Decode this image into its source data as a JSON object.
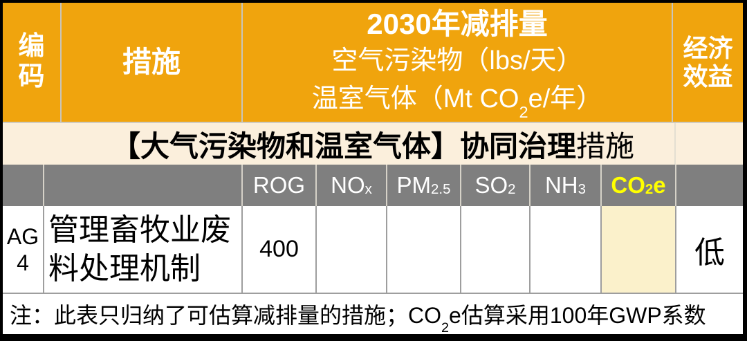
{
  "colors": {
    "header_orange": "#F0A40D",
    "section_cream": "#FBEFDC",
    "co2e_cell_cream": "#FBF1CB",
    "subheader_gray": "#7F7F7F",
    "co2e_highlight_yellow": "#FFFF00",
    "outer_border_black": "#000000"
  },
  "top_header": {
    "code_line1": "编",
    "code_line2": "码",
    "measure": "措施",
    "reduction": {
      "title": "2030年减排量",
      "subline1": "空气污染物（lbs/天）",
      "subline2_pre": "温室气体（Mt CO",
      "subline2_sub": "2",
      "subline2_post": "e/年）"
    },
    "economic_line1": "经济",
    "economic_line2": "效益"
  },
  "section_banner": {
    "bold_part": "【大气污染物和温室气体】协同治理",
    "regular_part": "措施"
  },
  "subheader": {
    "columns": [
      {
        "base": "ROG",
        "sub": "",
        "post": ""
      },
      {
        "base": "NO",
        "sub": "x",
        "post": ""
      },
      {
        "base": "PM",
        "sub": "2.5",
        "post": ""
      },
      {
        "base": "SO",
        "sub": "2",
        "post": ""
      },
      {
        "base": "NH",
        "sub": "3",
        "post": ""
      },
      {
        "base": "CO",
        "sub": "2",
        "post": "e"
      }
    ]
  },
  "data_row": {
    "code_line1": "AG",
    "code_line2": "4",
    "measure": "管理畜牧业废料处理机制",
    "rog": "400",
    "nox": "",
    "pm25": "",
    "so2": "",
    "nh3": "",
    "co2e": "",
    "economic": "低"
  },
  "footnote": {
    "pre": "注：此表只归纳了可估算减排量的措施；CO",
    "sub": "2",
    "post": "e估算采用100年GWP系数"
  }
}
